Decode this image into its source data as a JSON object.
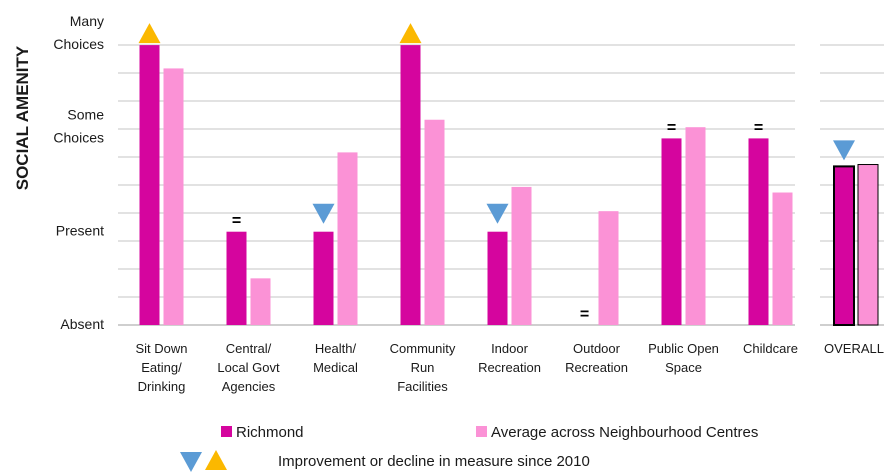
{
  "chart_data": {
    "type": "bar",
    "ylabel": "SOCIAL AMENITY",
    "y_tick_labels": [
      {
        "value": 0,
        "lines": [
          "Absent"
        ]
      },
      {
        "value": 1,
        "lines": [
          "Present"
        ]
      },
      {
        "value": 2,
        "lines": [
          "Some",
          "Choices"
        ]
      },
      {
        "value": 3,
        "lines": [
          "Many",
          "Choices"
        ]
      }
    ],
    "ylim": [
      0,
      3.2
    ],
    "grid": true,
    "categories": [
      [
        "Sit Down",
        "Eating/",
        "Drinking"
      ],
      [
        "Central/",
        "Local Govt",
        "Agencies"
      ],
      [
        "Health/",
        "Medical"
      ],
      [
        "Community",
        "Run",
        "Facilities"
      ],
      [
        "Indoor",
        "Recreation"
      ],
      [
        "Outdoor",
        "Recreation"
      ],
      [
        "Public Open",
        "Space"
      ],
      [
        "Childcare"
      ]
    ],
    "series": [
      {
        "name": "Richmond",
        "color": "#d5059e",
        "values": [
          3.0,
          1.0,
          1.0,
          3.0,
          1.0,
          0.0,
          2.0,
          2.0
        ]
      },
      {
        "name": "Average across Neighbourhood Centres",
        "color": "#fb92d6",
        "values": [
          2.75,
          0.5,
          1.85,
          2.2,
          1.48,
          1.22,
          2.12,
          1.42
        ]
      }
    ],
    "change_markers": [
      "up",
      "same",
      "down",
      "up",
      "down",
      "same",
      "same",
      "same"
    ],
    "same_symbol": "=",
    "overall": {
      "label": "OVERALL",
      "values": [
        1.7,
        1.72
      ],
      "change": "down"
    },
    "legend": {
      "placement": "bottom",
      "marker_text": "Improvement or decline in measure since 2010"
    },
    "colors": {
      "up": "#fbb800",
      "down": "#5b9bd5",
      "grid": "#d9d9d9"
    }
  }
}
